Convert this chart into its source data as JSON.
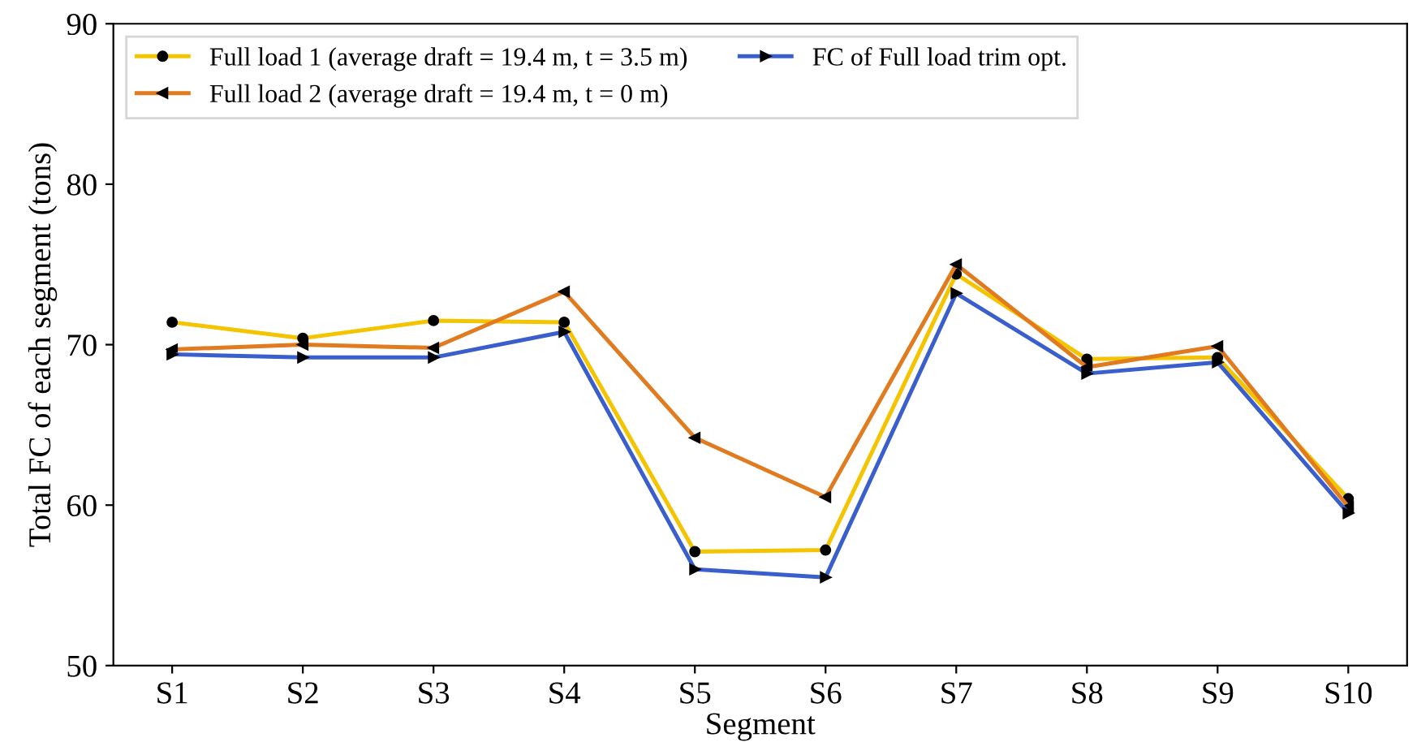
{
  "chart_data": {
    "type": "line",
    "xlabel": "Segment",
    "ylabel": "Total FC of each segment (tons)",
    "categories": [
      "S1",
      "S2",
      "S3",
      "S4",
      "S5",
      "S6",
      "S7",
      "S8",
      "S9",
      "S10"
    ],
    "series": [
      {
        "name": "Full load 1 (average draft = 19.4 m, t = 3.5 m)",
        "color": "#f5c400",
        "marker": "circle",
        "values": [
          71.4,
          70.4,
          71.5,
          71.4,
          57.1,
          57.2,
          74.4,
          69.1,
          69.2,
          60.4
        ]
      },
      {
        "name": "Full load 2 (average draft = 19.4 m, t = 0 m)",
        "color": "#e07b20",
        "marker": "triangle-left",
        "values": [
          69.7,
          70.0,
          69.8,
          73.3,
          64.2,
          60.5,
          75.0,
          68.6,
          69.9,
          59.9
        ]
      },
      {
        "name": "FC of Full load trim opt.",
        "color": "#3a5fcd",
        "marker": "triangle-right",
        "values": [
          69.4,
          69.2,
          69.2,
          70.8,
          56.0,
          55.5,
          73.2,
          68.2,
          68.9,
          59.5
        ]
      }
    ],
    "ylim": [
      50,
      90
    ],
    "yticks": [
      50,
      60,
      70,
      80,
      90
    ],
    "grid": false,
    "legend": "top left",
    "line_style": "solid"
  }
}
